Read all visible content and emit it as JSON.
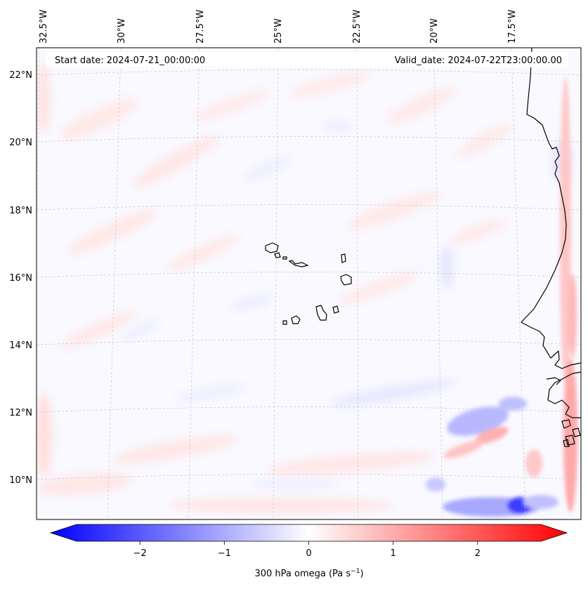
{
  "map": {
    "start_date": "Start date: 2024-07-21_00:00:00",
    "valid_date": "Valid_date: 2024-07-22T23:00:00.00",
    "field": "300 hPa omega",
    "longitude_labels": [
      "32.5°W",
      "30°W",
      "27.5°W",
      "25°W",
      "22.5°W",
      "20°W",
      "17.5°W"
    ],
    "latitude_labels": [
      "22°N",
      "20°N",
      "18°N",
      "16°N",
      "14°N",
      "12°N",
      "10°N"
    ],
    "colorbar": {
      "label": "300 hPa omega (Pa s",
      "label_unit_exponent": "−1",
      "label_close": ")",
      "ticks": [
        "−2",
        "−1",
        "0",
        "1",
        "2"
      ],
      "tick_values": [
        -2,
        -1,
        0,
        1,
        2
      ],
      "min": -2.75,
      "max": 2.75,
      "colors": {
        "low": "#0000ff",
        "mid": "#ffffff",
        "high": "#ff0000"
      }
    },
    "colors": {
      "coastline": "#000000",
      "gridline": "#c8c8c8",
      "frame": "#000000"
    }
  }
}
